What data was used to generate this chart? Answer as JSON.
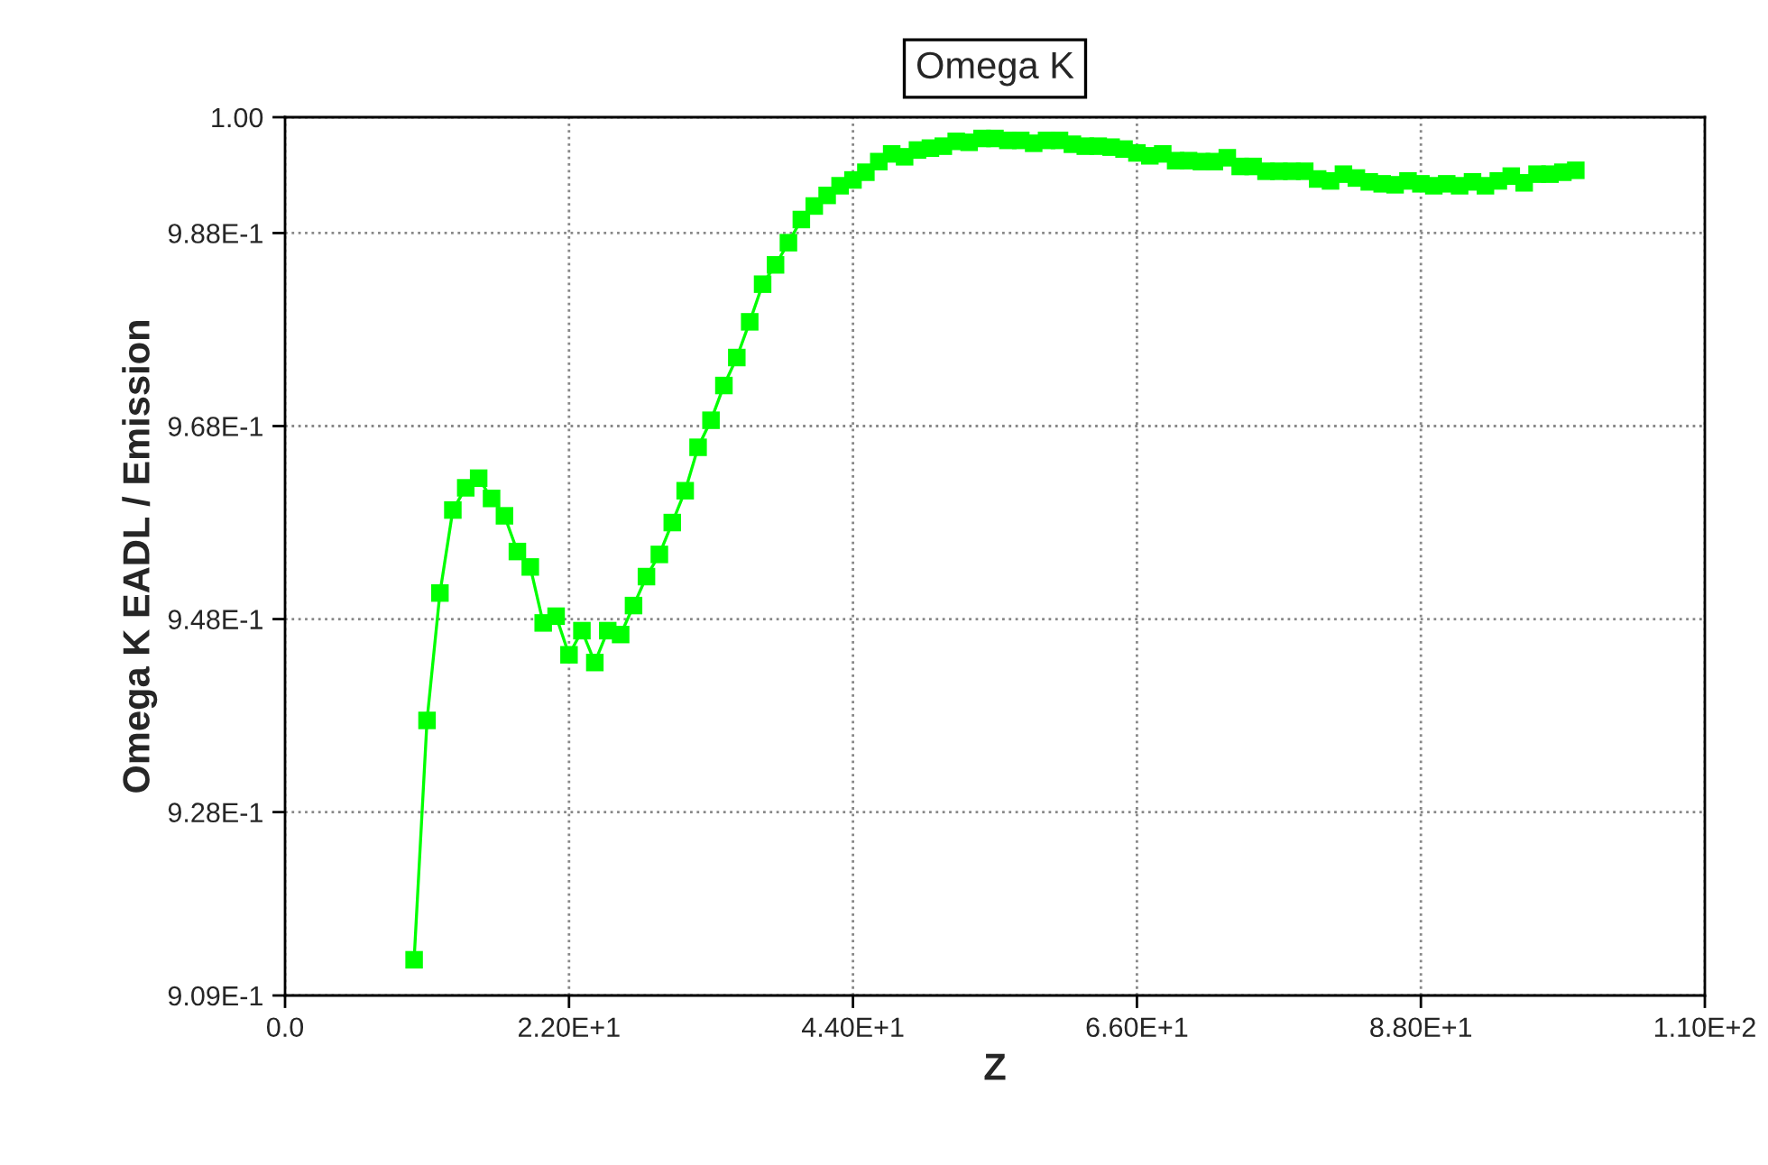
{
  "chart_data": {
    "type": "line",
    "title": "Omega K",
    "xlabel": "Z",
    "ylabel": "Omega K EADL / Emission",
    "series": [
      {
        "color": "#00ff00",
        "marker": "square",
        "line_style": "solid",
        "x": [
          10,
          11,
          12,
          13,
          14,
          15,
          16,
          17,
          18,
          19,
          20,
          21,
          22,
          23,
          24,
          25,
          26,
          27,
          28,
          29,
          30,
          31,
          32,
          33,
          34,
          35,
          36,
          37,
          38,
          39,
          40,
          41,
          42,
          43,
          44,
          45,
          46,
          47,
          48,
          49,
          50,
          51,
          52,
          53,
          54,
          55,
          56,
          57,
          58,
          59,
          60,
          61,
          62,
          63,
          64,
          65,
          66,
          67,
          68,
          69,
          70,
          71,
          72,
          73,
          74,
          75,
          76,
          77,
          78,
          79,
          80,
          81,
          82,
          83,
          84,
          85,
          86,
          87,
          88,
          89,
          90,
          91,
          92,
          93,
          94,
          95,
          96,
          97,
          98,
          99,
          100
        ],
        "values": [
          0.9127,
          0.9375,
          0.9507,
          0.9593,
          0.9616,
          0.9626,
          0.9605,
          0.9587,
          0.955,
          0.9534,
          0.9476,
          0.9483,
          0.9443,
          0.9468,
          0.9435,
          0.9468,
          0.9464,
          0.9494,
          0.9524,
          0.9547,
          0.958,
          0.9613,
          0.9658,
          0.9686,
          0.9722,
          0.9751,
          0.9788,
          0.9827,
          0.9847,
          0.987,
          0.9894,
          0.9908,
          0.9919,
          0.9929,
          0.9935,
          0.9943,
          0.9954,
          0.9962,
          0.9959,
          0.9966,
          0.9968,
          0.997,
          0.9975,
          0.9974,
          0.9978,
          0.9978,
          0.9976,
          0.9976,
          0.9973,
          0.9976,
          0.9976,
          0.9972,
          0.997,
          0.997,
          0.9969,
          0.9967,
          0.9963,
          0.996,
          0.9962,
          0.9955,
          0.9955,
          0.9954,
          0.9954,
          0.9958,
          0.9949,
          0.9949,
          0.9944,
          0.9944,
          0.9944,
          0.9944,
          0.9936,
          0.9934,
          0.9941,
          0.9937,
          0.9933,
          0.9931,
          0.993,
          0.9934,
          0.9931,
          0.9929,
          0.9931,
          0.9929,
          0.9933,
          0.9929,
          0.9934,
          0.9939,
          0.9932,
          0.9941,
          0.9941,
          0.9943,
          0.9945
        ]
      }
    ],
    "xlim": [
      0,
      110
    ],
    "xticks": [
      {
        "value": 0,
        "label": "0.0"
      },
      {
        "value": 22,
        "label": "2.20E+1"
      },
      {
        "value": 44,
        "label": "4.40E+1"
      },
      {
        "value": 66,
        "label": "6.60E+1"
      },
      {
        "value": 88,
        "label": "8.80E+1"
      },
      {
        "value": 110,
        "label": "1.10E+2"
      }
    ],
    "ylim": [
      0.909,
      1.0
    ],
    "yticks": [
      {
        "value": 0.909,
        "label": "9.09E-1"
      },
      {
        "value": 0.928,
        "label": "9.28E-1"
      },
      {
        "value": 0.948,
        "label": "9.48E-1"
      },
      {
        "value": 0.968,
        "label": "9.68E-1"
      },
      {
        "value": 0.988,
        "label": "9.88E-1"
      },
      {
        "value": 1.0,
        "label": "1.00"
      }
    ],
    "grid": true,
    "legend": false
  }
}
